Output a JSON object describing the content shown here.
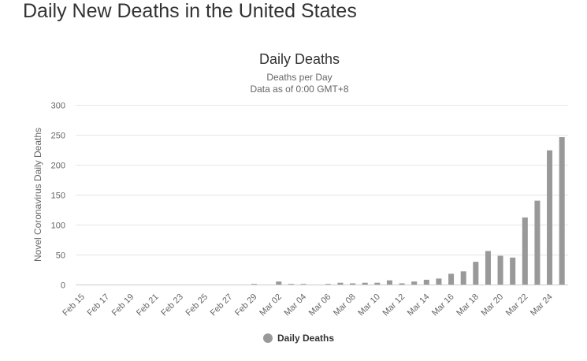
{
  "page": {
    "title": "Daily New Deaths in the United States"
  },
  "legend": {
    "label": "Daily Deaths",
    "color": "#999999"
  },
  "chart_data": {
    "type": "bar",
    "title": "Daily Deaths",
    "subtitle": "Deaths per Day",
    "subtitle2": "Data as of 0:00 GMT+8",
    "ylabel": "Novel Coronavirus Daily Deaths",
    "xlabel": "",
    "ylim": [
      0,
      300
    ],
    "yticks": [
      0,
      50,
      100,
      150,
      200,
      250,
      300
    ],
    "grid": true,
    "legend_position": "bottom-center",
    "color": "#999999",
    "categories": [
      "Feb 15",
      "Feb 16",
      "Feb 17",
      "Feb 18",
      "Feb 19",
      "Feb 20",
      "Feb 21",
      "Feb 22",
      "Feb 23",
      "Feb 24",
      "Feb 25",
      "Feb 26",
      "Feb 27",
      "Feb 28",
      "Feb 29",
      "Mar 01",
      "Mar 02",
      "Mar 03",
      "Mar 04",
      "Mar 05",
      "Mar 06",
      "Mar 07",
      "Mar 08",
      "Mar 09",
      "Mar 10",
      "Mar 11",
      "Mar 12",
      "Mar 13",
      "Mar 14",
      "Mar 15",
      "Mar 16",
      "Mar 17",
      "Mar 18",
      "Mar 19",
      "Mar 20",
      "Mar 21",
      "Mar 22",
      "Mar 23",
      "Mar 24",
      "Mar 25"
    ],
    "tick_labels": [
      "Feb 15",
      "Feb 17",
      "Feb 19",
      "Feb 21",
      "Feb 23",
      "Feb 25",
      "Feb 27",
      "Feb 29",
      "Mar 02",
      "Mar 04",
      "Mar 06",
      "Mar 08",
      "Mar 10",
      "Mar 12",
      "Mar 14",
      "Mar 16",
      "Mar 18",
      "Mar 20",
      "Mar 22",
      "Mar 24"
    ],
    "series": [
      {
        "name": "Daily Deaths",
        "values": [
          0,
          0,
          0,
          0,
          0,
          0,
          0,
          0,
          0,
          0,
          0,
          0,
          0,
          0,
          1,
          0,
          5,
          1,
          1,
          0,
          1,
          3,
          2,
          3,
          3,
          7,
          2,
          5,
          8,
          10,
          18,
          22,
          38,
          56,
          48,
          45,
          112,
          140,
          224,
          246
        ]
      }
    ]
  }
}
